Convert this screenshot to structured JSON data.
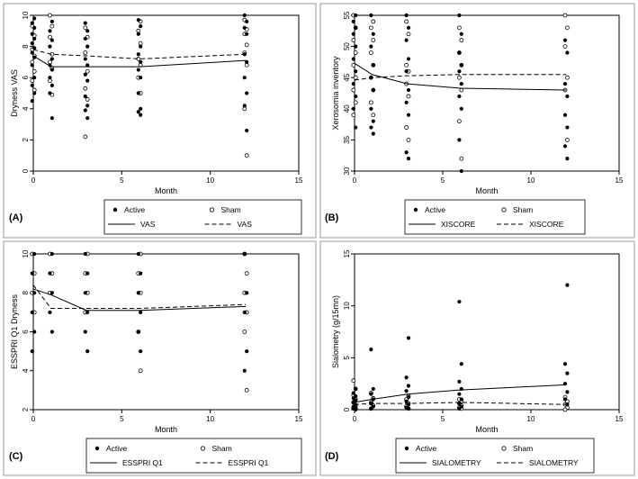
{
  "chart_data": [
    {
      "type": "scatter",
      "panel_label": "(A)",
      "xlabel": "Month",
      "ylabel": "Dryness VAS",
      "xlim": [
        0,
        15
      ],
      "ylim": [
        0,
        10
      ],
      "xticks": [
        "0",
        "5",
        "10",
        "15"
      ],
      "yticks": [
        "0",
        "2",
        "4",
        "6",
        "8",
        "10"
      ],
      "legend": {
        "active_label": "Active",
        "sham_label": "Sham",
        "line_active_label": "VAS",
        "line_sham_label": "VAS"
      },
      "active_points": {
        "x": [
          0,
          0,
          0,
          0,
          0,
          0,
          0,
          0,
          0,
          0,
          0,
          0,
          0,
          0,
          1,
          1,
          1,
          1,
          1,
          1,
          1,
          1,
          1,
          1,
          1,
          3,
          3,
          3,
          3,
          3,
          3,
          3,
          3,
          3,
          3,
          3,
          3,
          6,
          6,
          6,
          6,
          6,
          6,
          6,
          6,
          6,
          6,
          6,
          6,
          12,
          12,
          12,
          12,
          12,
          12,
          12,
          12,
          12,
          12
        ],
        "y": [
          9.8,
          9.5,
          9.2,
          8.8,
          8.5,
          8.2,
          7.9,
          7.6,
          7.3,
          6.8,
          6.0,
          5.5,
          5.0,
          4.5,
          9.6,
          9.0,
          8.4,
          8.0,
          7.2,
          6.8,
          6.5,
          6.0,
          5.5,
          5.0,
          3.4,
          9.5,
          9.0,
          8.5,
          8.0,
          7.2,
          6.8,
          6.2,
          5.8,
          4.8,
          4.2,
          3.9,
          3.4,
          9.7,
          9.3,
          8.8,
          8.0,
          7.5,
          7.0,
          6.5,
          6.0,
          5.0,
          4.0,
          3.8,
          3.6,
          10.0,
          9.6,
          9.2,
          8.8,
          7.5,
          7.0,
          6.0,
          5.0,
          4.2,
          2.6
        ]
      },
      "sham_points": {
        "x": [
          0,
          0,
          0,
          0,
          0,
          0,
          0,
          0,
          1,
          1,
          1,
          1,
          1,
          1,
          1,
          1,
          3,
          3,
          3,
          3,
          3,
          3,
          3,
          6,
          6,
          6,
          6,
          6,
          6,
          6,
          12,
          12,
          12,
          12,
          12,
          12,
          12,
          12
        ],
        "y": [
          9.3,
          8.7,
          7.8,
          7.4,
          7.0,
          6.4,
          5.8,
          5.2,
          10.0,
          9.3,
          8.6,
          7.5,
          7.0,
          6.6,
          5.8,
          4.9,
          9.2,
          8.6,
          7.6,
          6.4,
          5.3,
          4.6,
          2.2,
          9.6,
          9.0,
          8.2,
          7.2,
          6.8,
          6.0,
          5.0,
          9.7,
          9.1,
          8.8,
          8.1,
          7.6,
          6.8,
          4.0,
          1.0
        ]
      },
      "line_active": {
        "x": [
          0,
          1,
          3,
          6,
          12
        ],
        "y": [
          7.4,
          6.7,
          6.7,
          6.7,
          7.1
        ]
      },
      "line_sham": {
        "x": [
          0,
          1,
          3,
          6,
          12
        ],
        "y": [
          7.8,
          7.5,
          7.4,
          7.2,
          7.5
        ]
      }
    },
    {
      "type": "scatter",
      "panel_label": "(B)",
      "xlabel": "Month",
      "ylabel": "Xerosomia inventory",
      "xlim": [
        0,
        15
      ],
      "ylim": [
        30,
        55
      ],
      "xticks": [
        "0",
        "5",
        "10",
        "15"
      ],
      "yticks": [
        "30",
        "35",
        "40",
        "45",
        "50",
        "55"
      ],
      "legend": {
        "active_label": "Active",
        "sham_label": "Sham",
        "line_active_label": "XISCORE",
        "line_sham_label": "XISCORE"
      },
      "active_points": {
        "x": [
          0,
          0,
          0,
          0,
          0,
          0,
          0,
          0,
          0,
          0,
          0,
          1,
          1,
          1,
          1,
          1,
          1,
          1,
          1,
          1,
          1,
          3,
          3,
          3,
          3,
          3,
          3,
          3,
          3,
          3,
          3,
          6,
          6,
          6,
          6,
          6,
          6,
          6,
          6,
          6,
          6,
          12,
          12,
          12,
          12,
          12,
          12,
          12,
          12
        ],
        "y": [
          55,
          54,
          53,
          52,
          50,
          48,
          46,
          44,
          42,
          40,
          37,
          55,
          52,
          50,
          47,
          45,
          43,
          40,
          38,
          37,
          36,
          55,
          53,
          51,
          48,
          46,
          43,
          41,
          39,
          33,
          32,
          55,
          52,
          49,
          47,
          46,
          44,
          42,
          40,
          35,
          30,
          51,
          49,
          44,
          42,
          39,
          37,
          34,
          32
        ]
      },
      "sham_points": {
        "x": [
          0,
          0,
          0,
          0,
          0,
          0,
          0,
          0,
          0,
          1,
          1,
          1,
          1,
          1,
          1,
          1,
          1,
          1,
          3,
          3,
          3,
          3,
          3,
          3,
          3,
          3,
          6,
          6,
          6,
          6,
          6,
          6,
          6,
          6,
          12,
          12,
          12,
          12,
          12,
          12
        ],
        "y": [
          55,
          53,
          51,
          49,
          47,
          45,
          43,
          41,
          39,
          54,
          53,
          51,
          49,
          47,
          45,
          43,
          41,
          39,
          54,
          52,
          47,
          46,
          44,
          42,
          37,
          35,
          53,
          51,
          49,
          47,
          45,
          43,
          38,
          32,
          55,
          53,
          50,
          45,
          43,
          35
        ]
      },
      "line_active": {
        "x": [
          0,
          1,
          3,
          6,
          12
        ],
        "y": [
          47.3,
          45.5,
          44.0,
          43.3,
          43.0
        ]
      },
      "line_sham": {
        "x": [
          0,
          1,
          3,
          6,
          12
        ],
        "y": [
          44.6,
          45.0,
          45.3,
          45.5,
          45.5
        ]
      }
    },
    {
      "type": "scatter",
      "panel_label": "(C)",
      "xlabel": "Month",
      "ylabel": "ESSPRI Q1 Dryness",
      "xlim": [
        0,
        15
      ],
      "ylim": [
        2,
        10
      ],
      "xticks": [
        "0",
        "5",
        "10",
        "15"
      ],
      "yticks": [
        "2",
        "4",
        "6",
        "8",
        "10"
      ],
      "legend": {
        "active_label": "Active",
        "sham_label": "Sham",
        "line_active_label": "ESSPRI Q1",
        "line_sham_label": "ESSPRI Q1"
      },
      "active_points": {
        "x": [
          0,
          0,
          0,
          0,
          0,
          0,
          1,
          1,
          1,
          1,
          1,
          3,
          3,
          3,
          3,
          3,
          3,
          6,
          6,
          6,
          6,
          6,
          6,
          12,
          12,
          12,
          12,
          12
        ],
        "y": [
          10,
          9,
          8,
          7,
          6,
          5,
          10,
          9,
          8,
          7,
          6,
          10,
          9,
          8,
          7,
          6,
          5,
          10,
          9,
          8,
          7,
          6,
          5,
          10,
          8,
          7,
          5,
          4
        ]
      },
      "sham_points": {
        "x": [
          0,
          0,
          0,
          0,
          1,
          1,
          1,
          3,
          3,
          3,
          3,
          6,
          6,
          6,
          6,
          6,
          12,
          12,
          12,
          12,
          12,
          12
        ],
        "y": [
          10,
          9,
          8,
          7,
          10,
          9,
          8,
          10,
          9,
          8,
          7,
          10,
          9,
          8,
          6,
          4,
          10,
          9,
          8,
          7,
          6,
          3
        ]
      },
      "line_active": {
        "x": [
          0,
          1,
          3,
          6,
          12
        ],
        "y": [
          8.2,
          7.9,
          7.1,
          7.1,
          7.3
        ]
      },
      "line_sham": {
        "x": [
          0,
          1,
          3,
          6,
          12
        ],
        "y": [
          8.4,
          7.2,
          7.2,
          7.2,
          7.4
        ]
      }
    },
    {
      "type": "scatter",
      "panel_label": "(D)",
      "xlabel": "Month",
      "ylabel": "Sialometry (g/15mn)",
      "xlim": [
        0,
        15
      ],
      "ylim": [
        0,
        15
      ],
      "xticks": [
        "0",
        "5",
        "10",
        "15"
      ],
      "yticks": [
        "0",
        "5",
        "10",
        "15"
      ],
      "legend": {
        "active_label": "Active",
        "sham_label": "Sham",
        "line_active_label": "SIALOMETRY",
        "line_sham_label": "SIALOMETRY"
      },
      "active_points": {
        "x": [
          0,
          0,
          0,
          0,
          0,
          0,
          0,
          0,
          0,
          0,
          0,
          1,
          1,
          1,
          1,
          1,
          1,
          1,
          3,
          3,
          3,
          3,
          3,
          3,
          3,
          3,
          3,
          6,
          6,
          6,
          6,
          6,
          6,
          6,
          6,
          6,
          12,
          12,
          12,
          12,
          12,
          12,
          12
        ],
        "y": [
          2.0,
          1.6,
          1.3,
          1.1,
          0.9,
          0.7,
          0.5,
          0.3,
          0.2,
          0.1,
          0.0,
          5.8,
          2.0,
          1.5,
          1.0,
          0.6,
          0.3,
          0.1,
          6.9,
          3.1,
          2.3,
          1.8,
          1.2,
          0.8,
          0.5,
          0.2,
          0.1,
          10.4,
          4.4,
          2.7,
          2.0,
          1.5,
          1.0,
          0.6,
          0.3,
          0.1,
          12.0,
          4.4,
          3.5,
          2.5,
          1.7,
          1.0,
          0.5
        ]
      },
      "sham_points": {
        "x": [
          0,
          0,
          0,
          0,
          0,
          0,
          0,
          0,
          1,
          1,
          1,
          1,
          1,
          3,
          3,
          3,
          3,
          3,
          6,
          6,
          6,
          6,
          6,
          6,
          12,
          12,
          12,
          12,
          12
        ],
        "y": [
          2.8,
          2.0,
          1.4,
          1.0,
          0.7,
          0.4,
          0.2,
          0.1,
          1.6,
          1.1,
          0.7,
          0.4,
          0.1,
          1.3,
          1.0,
          0.6,
          0.3,
          0.1,
          1.0,
          0.8,
          0.6,
          0.4,
          0.2,
          0.1,
          1.2,
          0.8,
          0.5,
          0.2,
          0.0
        ]
      },
      "line_active": {
        "x": [
          0,
          1,
          3,
          6,
          12
        ],
        "y": [
          0.7,
          1.0,
          1.5,
          1.9,
          2.4
        ]
      },
      "line_sham": {
        "x": [
          0,
          1,
          3,
          6,
          12
        ],
        "y": [
          0.5,
          0.6,
          0.6,
          0.7,
          0.5
        ]
      }
    }
  ]
}
